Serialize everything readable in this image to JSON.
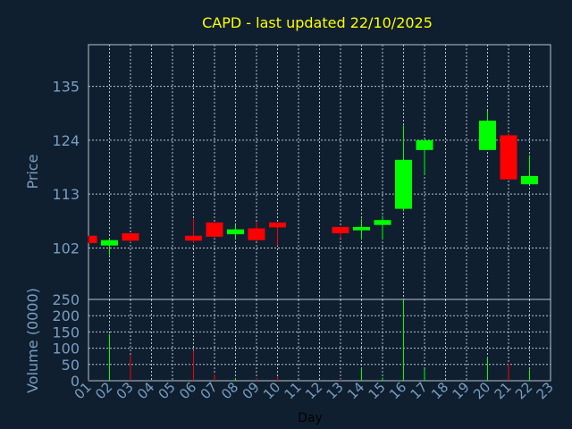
{
  "chart_data": [
    {
      "type": "candlestick",
      "title": "CAPD - last updated 22/10/2025",
      "xlabel": "",
      "ylabel": "Price",
      "ylim": [
        91.5,
        143.5
      ],
      "yticks": [
        102,
        113,
        124,
        135
      ],
      "xlim": [
        1,
        23
      ],
      "grid": true,
      "up_color": "#00ff00",
      "down_color": "#ff0000",
      "title_color": "#ffff00",
      "label_color": "#7a9ec0",
      "candles": [
        {
          "day": 1,
          "open": 104.5,
          "close": 103.0,
          "high": 104.5,
          "low": 103.0
        },
        {
          "day": 2,
          "open": 102.5,
          "close": 103.6,
          "high": 104.0,
          "low": 100.5
        },
        {
          "day": 3,
          "open": 105.0,
          "close": 103.5,
          "high": 105.0,
          "low": 103.2
        },
        {
          "day": 6,
          "open": 104.5,
          "close": 103.5,
          "high": 108.0,
          "low": 103.0
        },
        {
          "day": 7,
          "open": 107.2,
          "close": 104.3,
          "high": 107.2,
          "low": 104.0
        },
        {
          "day": 8,
          "open": 104.8,
          "close": 105.8,
          "high": 106.7,
          "low": 103.9
        },
        {
          "day": 9,
          "open": 106.0,
          "close": 103.6,
          "high": 107.3,
          "low": 103.4
        },
        {
          "day": 10,
          "open": 107.2,
          "close": 106.2,
          "high": 107.2,
          "low": 102.5
        },
        {
          "day": 13,
          "open": 106.3,
          "close": 105.0,
          "high": 106.3,
          "low": 104.0
        },
        {
          "day": 14,
          "open": 105.6,
          "close": 106.3,
          "high": 108.0,
          "low": 103.7
        },
        {
          "day": 15,
          "open": 106.7,
          "close": 107.7,
          "high": 108.6,
          "low": 103.8
        },
        {
          "day": 16,
          "open": 110.0,
          "close": 120.0,
          "high": 127.0,
          "low": 109.5
        },
        {
          "day": 17,
          "open": 122.0,
          "close": 124.0,
          "high": 124.0,
          "low": 117.0
        },
        {
          "day": 20,
          "open": 122.0,
          "close": 128.0,
          "high": 130.0,
          "low": 122.0
        },
        {
          "day": 21,
          "open": 125.0,
          "close": 116.0,
          "high": 125.5,
          "low": 116.0
        },
        {
          "day": 22,
          "open": 115.0,
          "close": 116.7,
          "high": 121.0,
          "low": 115.0
        }
      ]
    },
    {
      "type": "bar",
      "xlabel": "Day",
      "ylabel": "Volume (0000)",
      "ylim": [
        0,
        250
      ],
      "yticks": [
        0,
        50,
        100,
        150,
        200,
        250
      ],
      "x_tick_labels": [
        "01",
        "02",
        "03",
        "04",
        "05",
        "06",
        "07",
        "08",
        "09",
        "10",
        "11",
        "12",
        "13",
        "14",
        "15",
        "16",
        "17",
        "18",
        "19",
        "20",
        "21",
        "22",
        "23"
      ],
      "bars": [
        {
          "day": 1,
          "value": 2,
          "color": "#ff0000"
        },
        {
          "day": 2,
          "value": 143,
          "color": "#00ff00"
        },
        {
          "day": 3,
          "value": 80,
          "color": "#ff0000"
        },
        {
          "day": 6,
          "value": 93,
          "color": "#ff0000"
        },
        {
          "day": 7,
          "value": 20,
          "color": "#ff0000"
        },
        {
          "day": 8,
          "value": 8,
          "color": "#00ff00"
        },
        {
          "day": 9,
          "value": 8,
          "color": "#ff0000"
        },
        {
          "day": 10,
          "value": 12,
          "color": "#ff0000"
        },
        {
          "day": 13,
          "value": 5,
          "color": "#ff0000"
        },
        {
          "day": 14,
          "value": 40,
          "color": "#00ff00"
        },
        {
          "day": 15,
          "value": 10,
          "color": "#00ff00"
        },
        {
          "day": 16,
          "value": 250,
          "color": "#00ff00"
        },
        {
          "day": 17,
          "value": 36,
          "color": "#00ff00"
        },
        {
          "day": 20,
          "value": 73,
          "color": "#00ff00"
        },
        {
          "day": 21,
          "value": 52,
          "color": "#ff0000"
        },
        {
          "day": 22,
          "value": 35,
          "color": "#00ff00"
        }
      ]
    }
  ]
}
